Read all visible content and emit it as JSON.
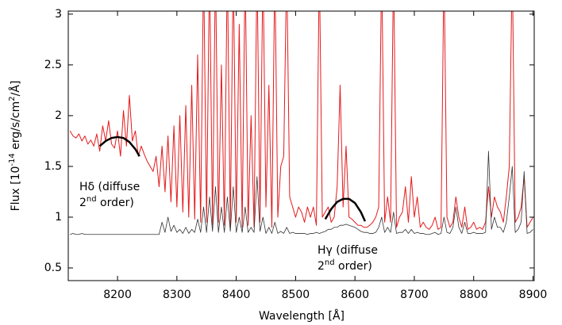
{
  "chart_data": {
    "type": "line",
    "xlabel": "Wavelength [Å]",
    "ylabel_parts": [
      {
        "text": "Flux [10"
      },
      {
        "text": "-14",
        "sup": true
      },
      {
        "text": " erg/s/cm"
      },
      {
        "text": "2",
        "sup": true
      },
      {
        "text": "/Å]"
      }
    ],
    "xlim": [
      8117,
      8902
    ],
    "ylim": [
      0.375,
      3.03
    ],
    "xticks": [
      8200,
      8300,
      8400,
      8500,
      8600,
      8700,
      8800,
      8900
    ],
    "yticks": [
      0.5,
      1,
      1.5,
      2,
      2.5,
      3
    ],
    "grid": false,
    "annotations": [
      {
        "text": "Hδ (diffuse",
        "base": "2",
        "sup": "nd",
        "rest": " order)"
      },
      {
        "text": "Hγ (diffuse",
        "base": "2",
        "sup": "nd",
        "rest": " order)"
      }
    ],
    "x": [
      8120,
      8125,
      8130,
      8135,
      8140,
      8145,
      8150,
      8155,
      8160,
      8165,
      8170,
      8175,
      8180,
      8185,
      8190,
      8195,
      8200,
      8205,
      8210,
      8215,
      8220,
      8225,
      8230,
      8235,
      8240,
      8245,
      8250,
      8255,
      8260,
      8265,
      8270,
      8275,
      8280,
      8285,
      8290,
      8295,
      8300,
      8305,
      8310,
      8315,
      8320,
      8325,
      8330,
      8335,
      8340,
      8345,
      8350,
      8355,
      8360,
      8365,
      8370,
      8375,
      8380,
      8385,
      8390,
      8395,
      8400,
      8405,
      8410,
      8415,
      8420,
      8425,
      8430,
      8435,
      8440,
      8445,
      8450,
      8455,
      8460,
      8465,
      8470,
      8475,
      8480,
      8485,
      8490,
      8495,
      8500,
      8505,
      8510,
      8515,
      8520,
      8525,
      8530,
      8535,
      8540,
      8545,
      8550,
      8555,
      8560,
      8565,
      8570,
      8575,
      8580,
      8585,
      8590,
      8595,
      8600,
      8605,
      8610,
      8615,
      8620,
      8625,
      8630,
      8635,
      8640,
      8645,
      8650,
      8655,
      8660,
      8665,
      8670,
      8675,
      8680,
      8685,
      8690,
      8695,
      8700,
      8705,
      8710,
      8715,
      8720,
      8725,
      8730,
      8735,
      8740,
      8745,
      8750,
      8755,
      8760,
      8765,
      8770,
      8775,
      8780,
      8785,
      8790,
      8795,
      8800,
      8805,
      8810,
      8815,
      8820,
      8825,
      8830,
      8835,
      8840,
      8845,
      8850,
      8855,
      8860,
      8865,
      8870,
      8875,
      8880,
      8885,
      8890,
      8895,
      8900
    ],
    "series": [
      {
        "color": "#e41a1c",
        "width": 1,
        "values": [
          1.85,
          1.8,
          1.78,
          1.82,
          1.75,
          1.8,
          1.72,
          1.76,
          1.7,
          1.82,
          1.65,
          1.9,
          1.75,
          1.95,
          1.72,
          1.68,
          1.85,
          1.6,
          2.05,
          1.7,
          2.2,
          1.75,
          1.85,
          1.6,
          1.7,
          1.62,
          1.55,
          1.5,
          1.45,
          1.6,
          1.3,
          1.7,
          1.25,
          1.8,
          1.15,
          1.9,
          1.1,
          2.0,
          1.05,
          2.1,
          1.0,
          2.3,
          0.98,
          2.6,
          0.95,
          3.5,
          0.95,
          3.5,
          0.92,
          3.5,
          0.95,
          2.5,
          0.92,
          3.5,
          0.9,
          3.5,
          0.95,
          2.9,
          0.9,
          3.5,
          0.92,
          2.0,
          0.9,
          3.5,
          0.95,
          3.5,
          1.1,
          2.3,
          0.9,
          3.5,
          1.0,
          1.5,
          1.6,
          3.5,
          1.2,
          1.1,
          1.0,
          1.1,
          1.05,
          0.95,
          1.1,
          1.0,
          1.1,
          0.92,
          3.5,
          1.0,
          1.05,
          1.1,
          0.95,
          1.0,
          1.3,
          2.3,
          1.1,
          1.7,
          1.0,
          0.98,
          0.95,
          0.92,
          0.92,
          0.9,
          0.9,
          0.92,
          0.95,
          1.0,
          1.1,
          3.5,
          0.95,
          1.2,
          0.95,
          3.5,
          0.9,
          1.0,
          1.05,
          1.3,
          0.95,
          1.4,
          1.0,
          1.2,
          0.9,
          0.95,
          0.9,
          0.88,
          0.92,
          1.0,
          0.88,
          0.9,
          3.5,
          1.0,
          0.9,
          0.95,
          1.2,
          1.0,
          0.9,
          1.1,
          0.88,
          0.9,
          0.95,
          0.88,
          0.9,
          0.88,
          0.95,
          1.3,
          1.0,
          1.2,
          1.1,
          1.05,
          0.95,
          1.2,
          1.5,
          3.5,
          0.95,
          1.0,
          1.1,
          1.4,
          0.9,
          0.95,
          1.0
        ]
      },
      {
        "color": "#333333",
        "width": 0.8,
        "values": [
          0.83,
          0.84,
          0.83,
          0.83,
          0.84,
          0.83,
          0.83,
          0.83,
          0.83,
          0.83,
          0.83,
          0.83,
          0.83,
          0.83,
          0.83,
          0.83,
          0.83,
          0.83,
          0.83,
          0.83,
          0.83,
          0.83,
          0.83,
          0.83,
          0.83,
          0.83,
          0.83,
          0.83,
          0.83,
          0.83,
          0.83,
          0.95,
          0.85,
          1.0,
          0.86,
          0.92,
          0.85,
          0.88,
          0.84,
          0.9,
          0.84,
          0.88,
          0.85,
          0.98,
          0.85,
          1.1,
          0.85,
          1.2,
          0.86,
          1.3,
          0.85,
          1.1,
          0.85,
          1.2,
          0.86,
          1.3,
          0.85,
          1.0,
          0.85,
          1.1,
          0.85,
          0.9,
          0.85,
          1.4,
          0.86,
          1.0,
          0.84,
          0.9,
          0.84,
          0.95,
          0.84,
          0.86,
          0.84,
          0.9,
          0.84,
          0.85,
          0.84,
          0.84,
          0.84,
          0.84,
          0.83,
          0.84,
          0.84,
          0.85,
          0.84,
          0.85,
          0.86,
          0.88,
          0.88,
          0.9,
          0.9,
          0.92,
          0.92,
          0.93,
          0.92,
          0.91,
          0.9,
          0.88,
          0.86,
          0.85,
          0.85,
          0.84,
          0.84,
          0.85,
          0.9,
          1.0,
          0.85,
          0.9,
          0.85,
          1.05,
          0.84,
          0.85,
          0.85,
          0.88,
          0.84,
          0.88,
          0.84,
          0.85,
          0.84,
          0.84,
          0.83,
          0.83,
          0.84,
          0.85,
          0.83,
          0.84,
          1.0,
          0.85,
          0.84,
          0.9,
          1.1,
          0.9,
          0.84,
          0.95,
          0.84,
          0.84,
          0.85,
          0.84,
          0.84,
          0.84,
          0.85,
          1.65,
          0.88,
          1.0,
          0.9,
          0.9,
          0.85,
          0.95,
          1.2,
          1.5,
          0.85,
          0.88,
          0.95,
          1.45,
          0.84,
          0.85,
          0.88
        ]
      },
      {
        "color": "#000000",
        "width": 2.5,
        "x": [
          8170,
          8180,
          8190,
          8200,
          8210,
          8220,
          8230,
          8237
        ],
        "values": [
          1.7,
          1.75,
          1.78,
          1.79,
          1.78,
          1.74,
          1.67,
          1.6
        ]
      },
      {
        "color": "#000000",
        "width": 2.5,
        "x": [
          8550,
          8560,
          8570,
          8580,
          8590,
          8600,
          8610,
          8617
        ],
        "values": [
          0.98,
          1.08,
          1.15,
          1.18,
          1.18,
          1.14,
          1.05,
          0.96
        ]
      }
    ]
  }
}
